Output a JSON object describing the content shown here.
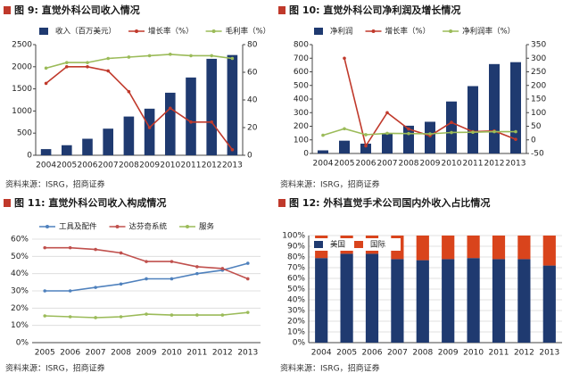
{
  "chart_data": [
    {
      "type": "combo",
      "title": "图 9: 直觉外科公司收入情况",
      "source": "资料来源：ISRG，招商证券",
      "categories": [
        "2004",
        "2005",
        "2006",
        "2007",
        "2008",
        "2009",
        "2010",
        "2011",
        "2012",
        "2013"
      ],
      "series": [
        {
          "name": "收入（百万美元）",
          "kind": "bar",
          "color": "#1f3a70",
          "values": [
            139,
            227,
            373,
            601,
            875,
            1052,
            1413,
            1757,
            2179,
            2265
          ]
        },
        {
          "name": "增长率（%）",
          "kind": "line",
          "axis": "y2",
          "color": "#c0392b",
          "values": [
            52,
            64,
            64,
            61,
            46,
            20,
            34,
            24,
            24,
            4
          ]
        },
        {
          "name": "毛利率（%）",
          "kind": "line",
          "axis": "y2",
          "color": "#9bbb59",
          "values": [
            63,
            67,
            67,
            70,
            71,
            72,
            73,
            72,
            72,
            70
          ]
        }
      ],
      "ylim": [
        0,
        2500
      ],
      "yticks": [
        0,
        500,
        1000,
        1500,
        2000,
        2500
      ],
      "y2lim": [
        0,
        80
      ],
      "y2ticks": [
        0,
        20,
        40,
        60,
        80
      ],
      "grid": false
    },
    {
      "type": "combo",
      "title": "图 10: 直觉外科公司净利润及增长情况",
      "source": "资料来源：ISRG，招商证券",
      "categories": [
        "2004",
        "2005",
        "2006",
        "2007",
        "2008",
        "2009",
        "2010",
        "2011",
        "2012",
        "2013"
      ],
      "series": [
        {
          "name": "净利润",
          "kind": "bar",
          "color": "#1f3a70",
          "values": [
            23,
            94,
            72,
            145,
            204,
            233,
            382,
            495,
            657,
            671
          ]
        },
        {
          "name": "增长率（%）",
          "kind": "line",
          "axis": "y2",
          "color": "#c0392b",
          "values": [
            null,
            300,
            -22,
            100,
            40,
            15,
            64,
            30,
            33,
            2
          ]
        },
        {
          "name": "净利润率（%）",
          "kind": "line",
          "axis": "y2",
          "color": "#9bbb59",
          "values": [
            17,
            41,
            19,
            24,
            23,
            22,
            27,
            28,
            30,
            30
          ]
        }
      ],
      "ylim": [
        0,
        800
      ],
      "yticks": [
        0,
        100,
        200,
        300,
        400,
        500,
        600,
        700,
        800
      ],
      "y2lim": [
        -50,
        350
      ],
      "y2ticks": [
        -50,
        0,
        50,
        100,
        150,
        200,
        250,
        300,
        350
      ],
      "grid": false
    },
    {
      "type": "line",
      "title": "图 11: 直觉外科公司收入构成情况",
      "source": "资料来源：ISRG，招商证券",
      "categories": [
        "2005",
        "2006",
        "2007",
        "2008",
        "2009",
        "2010",
        "2011",
        "2012",
        "2013"
      ],
      "series": [
        {
          "name": "工具及配件",
          "color": "#4f81bd",
          "values": [
            30,
            30,
            32,
            34,
            37,
            37,
            40,
            42,
            46
          ]
        },
        {
          "name": "达芬奇系统",
          "color": "#c0504d",
          "values": [
            55,
            55,
            54,
            52,
            47,
            47,
            44,
            43,
            37
          ]
        },
        {
          "name": "服务",
          "color": "#9bbb59",
          "values": [
            15.5,
            15,
            14.5,
            15,
            16.5,
            16,
            16,
            16,
            17.5
          ]
        }
      ],
      "ylim": [
        0,
        60
      ],
      "yticks": [
        {
          "value": 0,
          "label": "0%"
        },
        {
          "value": 10,
          "label": "10%"
        },
        {
          "value": 20,
          "label": "20%"
        },
        {
          "value": 30,
          "label": "30%"
        },
        {
          "value": 40,
          "label": "40%"
        },
        {
          "value": 50,
          "label": "50%"
        },
        {
          "value": 60,
          "label": "60%"
        }
      ],
      "grid": true
    },
    {
      "type": "stacked",
      "title": "图 12: 外科直觉手术公司国内外收入占比情况",
      "source": "资料来源：ISRG，招商证券",
      "categories": [
        "2004",
        "2005",
        "2006",
        "2007",
        "2008",
        "2009",
        "2010",
        "2011",
        "2012",
        "2013"
      ],
      "series": [
        {
          "name": "美国",
          "color": "#1f3a70",
          "values": [
            79,
            83,
            83,
            78,
            77,
            78,
            79,
            78,
            78,
            72
          ]
        },
        {
          "name": "国际",
          "color": "#d9441c",
          "values": [
            21,
            17,
            17,
            22,
            23,
            22,
            21,
            22,
            22,
            28
          ]
        }
      ],
      "ylim": [
        0,
        100
      ],
      "yticks": [
        {
          "value": 0,
          "label": "0%"
        },
        {
          "value": 10,
          "label": "10%"
        },
        {
          "value": 20,
          "label": "20%"
        },
        {
          "value": 30,
          "label": "30%"
        },
        {
          "value": 40,
          "label": "40%"
        },
        {
          "value": 50,
          "label": "50%"
        },
        {
          "value": 60,
          "label": "60%"
        },
        {
          "value": 70,
          "label": "70%"
        },
        {
          "value": 80,
          "label": "80%"
        },
        {
          "value": 90,
          "label": "90%"
        },
        {
          "value": 100,
          "label": "100%"
        }
      ],
      "grid": true
    }
  ]
}
